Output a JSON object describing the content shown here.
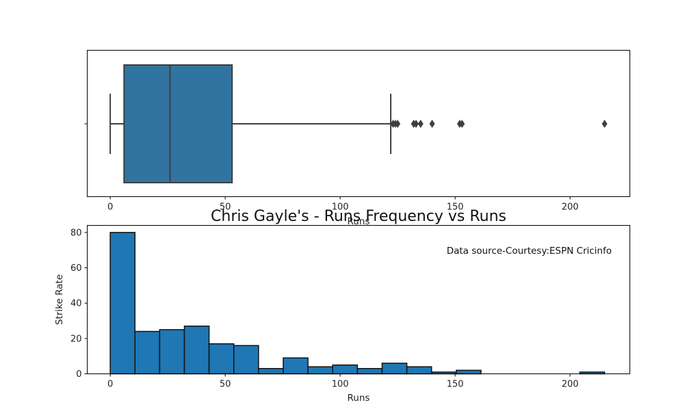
{
  "chart_data": [
    {
      "type": "box",
      "xlabel": "Runs",
      "xlim": [
        -10,
        226
      ],
      "x_ticks": [
        "0",
        "50",
        "100",
        "150",
        "200"
      ],
      "x_tick_values": [
        0,
        50,
        100,
        150,
        200
      ],
      "stats": {
        "whisker_low": 0,
        "q1": 6,
        "median": 26,
        "q3": 53,
        "whisker_high": 122
      },
      "outliers": [
        123,
        124,
        125,
        132,
        133,
        135,
        140,
        152,
        153,
        215
      ],
      "colors": {
        "box": "#3274a1",
        "line": "#3f3f3f"
      }
    },
    {
      "type": "histogram",
      "title": "Chris Gayle's - Runs Frequency vs Runs",
      "xlabel": "Runs",
      "ylabel": "Strike Rate",
      "annotation": "Data source-Courtesy:ESPN Cricinfo",
      "xlim": [
        -10,
        226
      ],
      "ylim": [
        0,
        84
      ],
      "x_ticks": [
        "0",
        "50",
        "100",
        "150",
        "200"
      ],
      "x_tick_values": [
        0,
        50,
        100,
        150,
        200
      ],
      "y_ticks": [
        "0",
        "20",
        "40",
        "60",
        "80"
      ],
      "y_tick_values": [
        0,
        20,
        40,
        60,
        80
      ],
      "bin_start": 0,
      "bin_width": 10.75,
      "counts": [
        80,
        24,
        25,
        27,
        17,
        16,
        3,
        9,
        4,
        5,
        3,
        6,
        4,
        1,
        2,
        0,
        0,
        0,
        0,
        1
      ],
      "colors": {
        "bar": "#1f77b4",
        "edge": "#111111"
      }
    }
  ]
}
